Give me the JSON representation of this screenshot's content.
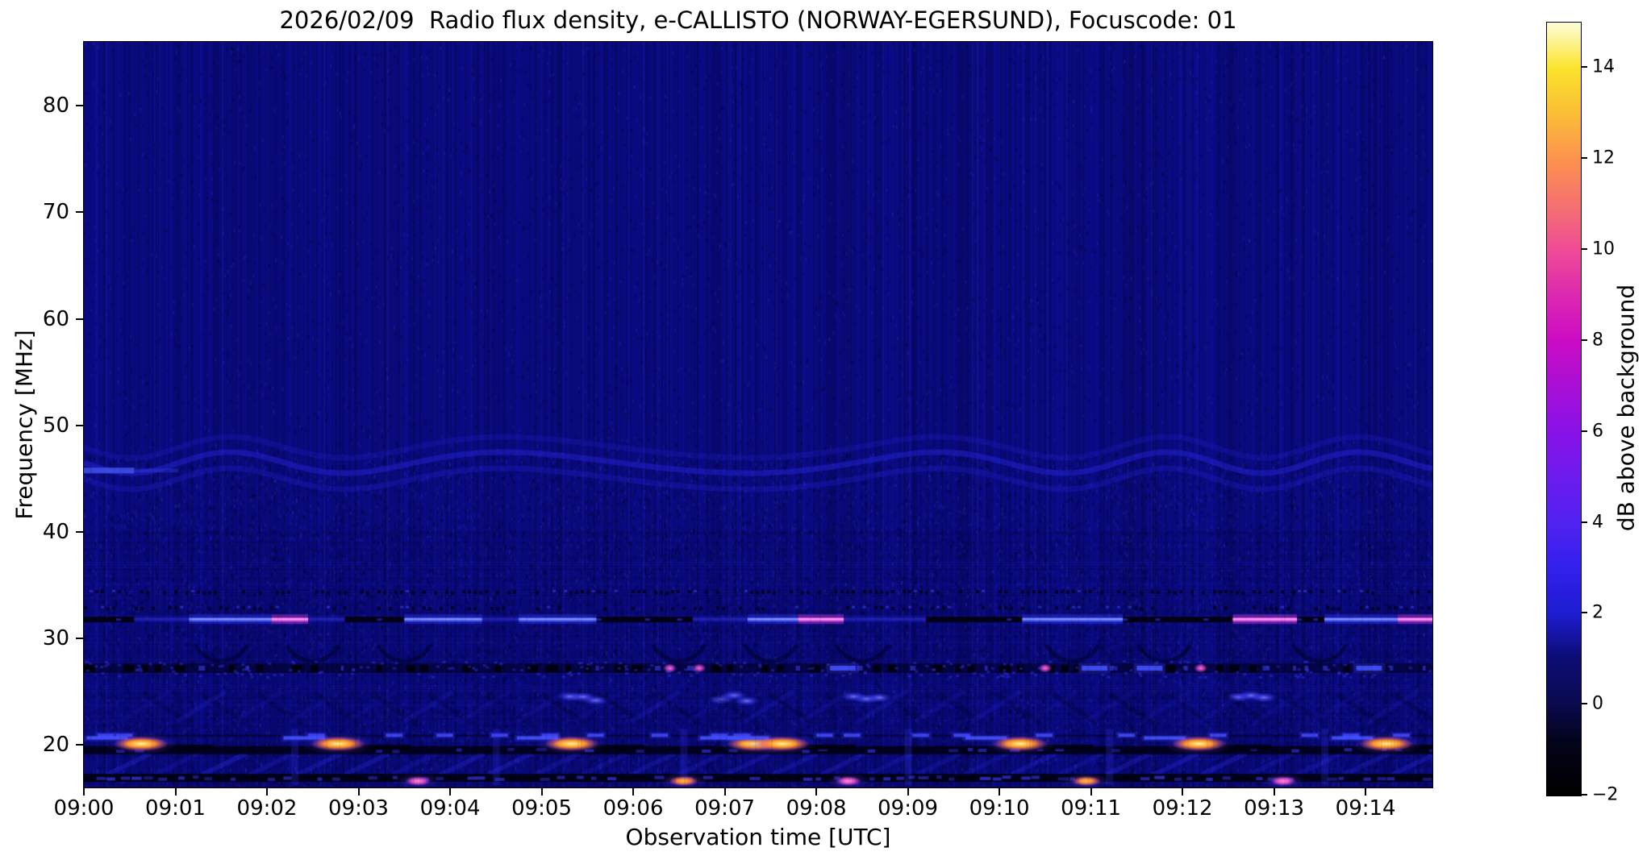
{
  "title": "2026/02/09  Radio flux density, e-CALLISTO (NORWAY-EGERSUND), Focuscode: 01",
  "station": "NORWAY-EGERSUND",
  "date": "2026/02/09",
  "focuscode": "01",
  "chart_data": {
    "type": "heatmap",
    "subtype": "radio-spectrogram",
    "title": "2026/02/09  Radio flux density, e-CALLISTO (NORWAY-EGERSUND), Focuscode: 01",
    "xlabel": "Observation time [UTC]",
    "ylabel": "Frequency [MHz]",
    "x_ticks": [
      "09:00",
      "09:01",
      "09:02",
      "09:03",
      "09:04",
      "09:05",
      "09:06",
      "09:07",
      "09:08",
      "09:09",
      "09:10",
      "09:11",
      "09:12",
      "09:13",
      "09:14"
    ],
    "x_tick_positions_minutes": [
      0,
      1,
      2,
      3,
      4,
      5,
      6,
      7,
      8,
      9,
      10,
      11,
      12,
      13,
      14
    ],
    "x_range_minutes": [
      0,
      14.73
    ],
    "y_ticks": [
      80,
      70,
      60,
      50,
      40,
      30,
      20
    ],
    "ylim": [
      16,
      86
    ],
    "grid": false,
    "background_level_db": 1.9,
    "colorbar": {
      "label": "dB above background",
      "ticks": [
        14,
        12,
        10,
        8,
        6,
        4,
        2,
        0,
        "−2"
      ],
      "tick_values": [
        14,
        12,
        10,
        8,
        6,
        4,
        2,
        0,
        -2
      ],
      "range": [
        -2,
        15
      ],
      "colormap": "gnuplot2-like (black-blue-violet-magenta-orange-yellow-white)",
      "colormap_stops": [
        [
          0.0,
          "#000000"
        ],
        [
          0.07,
          "#04041c"
        ],
        [
          0.12,
          "#0a0a50"
        ],
        [
          0.18,
          "#0d0d78"
        ],
        [
          0.235,
          "#1d1dd0"
        ],
        [
          0.3,
          "#3520ee"
        ],
        [
          0.35,
          "#5022f0"
        ],
        [
          0.41,
          "#6c1bee"
        ],
        [
          0.47,
          "#8812e8"
        ],
        [
          0.53,
          "#a90fd6"
        ],
        [
          0.59,
          "#cc0cc4"
        ],
        [
          0.65,
          "#de2aae"
        ],
        [
          0.7,
          "#ee4899"
        ],
        [
          0.76,
          "#f56f72"
        ],
        [
          0.82,
          "#fc9050"
        ],
        [
          0.88,
          "#fbbc38"
        ],
        [
          0.94,
          "#fbe32a"
        ],
        [
          1.0,
          "#fdfdda"
        ]
      ]
    },
    "background_color": "#0c0c8e",
    "features": {
      "rfi_line": {
        "freq_mhz": 31.8,
        "segments": [
          {
            "t0": 0.0,
            "t1": 0.55,
            "s": "black"
          },
          {
            "t0": 0.55,
            "t1": 1.15,
            "s": "dim"
          },
          {
            "t0": 1.15,
            "t1": 2.05,
            "s": "bright"
          },
          {
            "t0": 2.05,
            "t1": 2.45,
            "s": "magenta"
          },
          {
            "t0": 2.45,
            "t1": 2.85,
            "s": "dim"
          },
          {
            "t0": 2.85,
            "t1": 3.5,
            "s": "black"
          },
          {
            "t0": 3.5,
            "t1": 4.35,
            "s": "bright"
          },
          {
            "t0": 4.35,
            "t1": 4.75,
            "s": "dim"
          },
          {
            "t0": 4.75,
            "t1": 5.6,
            "s": "bright"
          },
          {
            "t0": 5.6,
            "t1": 6.65,
            "s": "black"
          },
          {
            "t0": 6.65,
            "t1": 7.25,
            "s": "dim"
          },
          {
            "t0": 7.25,
            "t1": 7.8,
            "s": "bright"
          },
          {
            "t0": 7.8,
            "t1": 8.3,
            "s": "magenta"
          },
          {
            "t0": 8.3,
            "t1": 9.2,
            "s": "dim"
          },
          {
            "t0": 9.2,
            "t1": 10.25,
            "s": "black"
          },
          {
            "t0": 10.25,
            "t1": 11.35,
            "s": "bright"
          },
          {
            "t0": 11.35,
            "t1": 12.55,
            "s": "black"
          },
          {
            "t0": 12.55,
            "t1": 13.25,
            "s": "magenta"
          },
          {
            "t0": 13.25,
            "t1": 13.55,
            "s": "black"
          },
          {
            "t0": 13.55,
            "t1": 14.35,
            "s": "bright"
          },
          {
            "t0": 14.35,
            "t1": 14.73,
            "s": "magenta"
          }
        ]
      },
      "ionosonde_sweeps": {
        "freq_mhz": 20.1,
        "times_min": [
          0.45,
          2.6,
          5.15,
          7.15,
          7.45,
          10.05,
          12.0,
          14.05
        ]
      },
      "low_blobs": {
        "freq_mhz": 16.6,
        "events": [
          {
            "t": 3.65,
            "c": "pink"
          },
          {
            "t": 6.55,
            "c": "orange"
          },
          {
            "t": 8.35,
            "c": "pink"
          },
          {
            "t": 10.95,
            "c": "orange"
          },
          {
            "t": 13.1,
            "c": "pink"
          }
        ]
      },
      "band_27mhz": {
        "freq_mhz": 27.2,
        "pink_dot_times": [
          6.4,
          6.72,
          10.5,
          12.2
        ],
        "bright_dash_times": [
          8.15,
          10.9,
          11.5,
          13.9
        ]
      },
      "dash_row_21mhz": {
        "freq_mhz": 20.9,
        "times": [
          0.15,
          0.35,
          2.45,
          3.3,
          3.85,
          4.45,
          5.0,
          5.5,
          6.2,
          6.85,
          7.1,
          8.0,
          8.3,
          9.05,
          9.5,
          10.4,
          11.3,
          12.3,
          13.3,
          13.75,
          14.3
        ]
      },
      "spot_cluster_24mhz": {
        "freq_mhz": 24.4,
        "times": [
          5.45,
          7.1,
          8.55,
          12.75
        ]
      },
      "dotted_row_freqs": [
        34.4,
        32.9
      ],
      "black_row_freqs": [
        19.5,
        16.9
      ],
      "wave_band": {
        "freq_center_mhz": 46.5,
        "amplitude_mhz": 1.1
      },
      "left_edge_smear": {
        "freq_mhz": 45.8,
        "t0": 0,
        "t1": 0.55
      },
      "vertical_streak_times": [
        2.3,
        4.5,
        6.55,
        9.0,
        11.2,
        13.55
      ]
    }
  }
}
